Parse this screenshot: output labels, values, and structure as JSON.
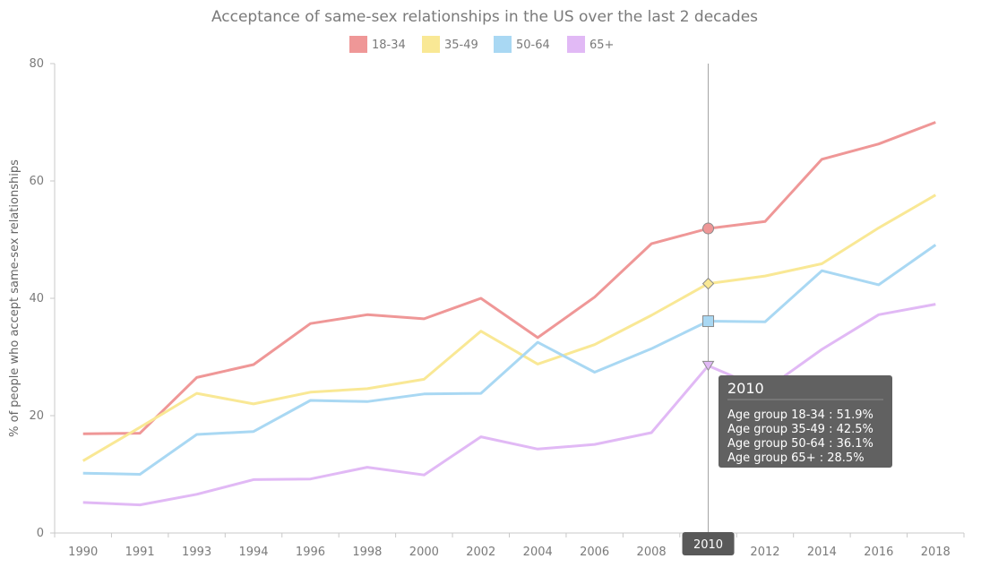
{
  "chart_data": {
    "type": "line",
    "title": "Acceptance of same-sex relationships in the US over the last 2 decades",
    "ylabel": "% of people who accept same-sex relationships",
    "xlabel": "",
    "categories": [
      "1990",
      "1991",
      "1993",
      "1994",
      "1996",
      "1998",
      "2000",
      "2002",
      "2004",
      "2006",
      "2008",
      "2010",
      "2012",
      "2014",
      "2016",
      "2018"
    ],
    "ylim": [
      0,
      80
    ],
    "yticks": [
      "0",
      "20",
      "40",
      "60",
      "80"
    ],
    "grid": false,
    "legend_position": "top-center",
    "series": [
      {
        "name": "18-34",
        "color": "#ef9797",
        "marker": "circle",
        "values": [
          16.9,
          17.0,
          26.5,
          28.7,
          35.7,
          37.2,
          36.5,
          40.0,
          33.3,
          40.2,
          49.3,
          51.9,
          53.1,
          63.7,
          66.3,
          70.0
        ]
      },
      {
        "name": "35-49",
        "color": "#f9e895",
        "marker": "diamond",
        "values": [
          12.3,
          18.0,
          23.8,
          22.0,
          24.0,
          24.6,
          26.2,
          34.4,
          28.8,
          32.1,
          37.1,
          42.5,
          43.8,
          45.9,
          52.0,
          57.6
        ]
      },
      {
        "name": "50-64",
        "color": "#a9d8f3",
        "marker": "square",
        "values": [
          10.2,
          10.0,
          16.8,
          17.3,
          22.6,
          22.4,
          23.7,
          23.8,
          32.5,
          27.4,
          31.4,
          36.1,
          36.0,
          44.7,
          42.3,
          49.1
        ]
      },
      {
        "name": "65+",
        "color": "#e1b9f5",
        "marker": "triangle-down",
        "values": [
          5.2,
          4.8,
          6.6,
          9.1,
          9.2,
          11.2,
          9.9,
          16.4,
          14.3,
          15.1,
          17.1,
          28.5,
          24.4,
          31.3,
          37.2,
          39.0
        ]
      }
    ],
    "crosshair": {
      "category": "2010",
      "tooltip_title": "2010",
      "tooltip_lines": [
        "Age group 18-34 : 51.9%",
        "Age group 35-49 : 42.5%",
        "Age group 50-64 : 36.1%",
        "Age group 65+ : 28.5%"
      ],
      "tooltip_bg": "#616161"
    },
    "colors": {
      "axis": "#c8c8c8",
      "crosshair": "#a3a3a3",
      "text": "#7a7a7a"
    }
  }
}
